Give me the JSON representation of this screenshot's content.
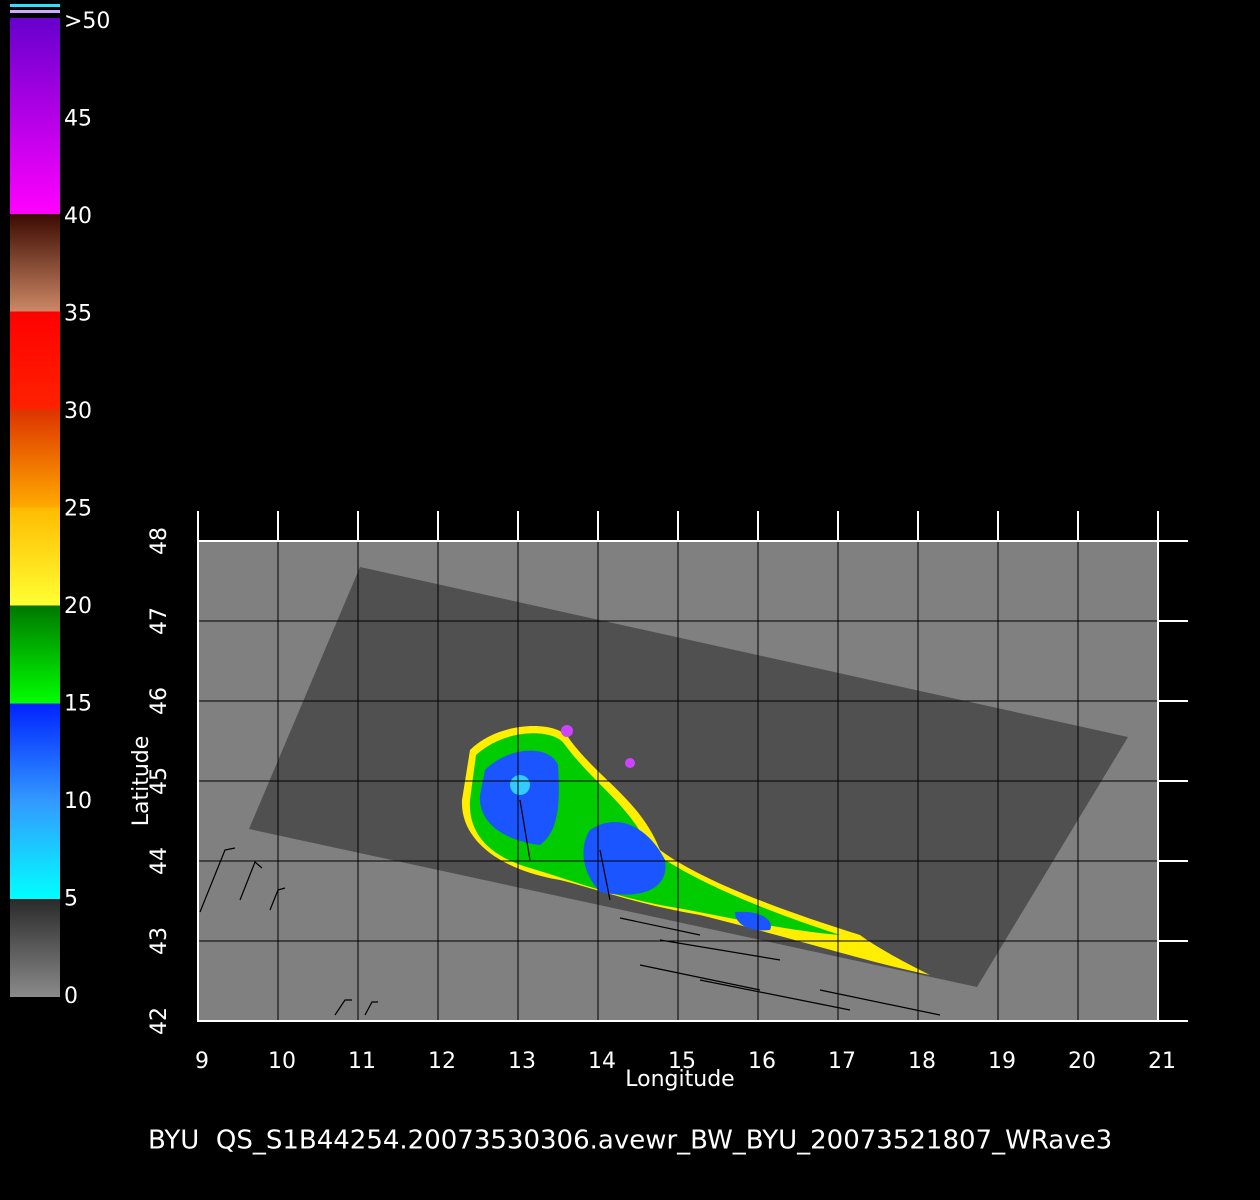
{
  "colorbar": {
    "ticks": [
      0,
      5,
      10,
      15,
      20,
      25,
      30,
      35,
      40,
      45,
      {
        "value": 50,
        "label": ">50"
      }
    ]
  },
  "map": {
    "xlabel": "Longitude",
    "ylabel": "Latitude",
    "xlim": [
      9,
      21
    ],
    "ylim": [
      42,
      48
    ],
    "xticks": [
      9,
      10,
      11,
      12,
      13,
      14,
      15,
      16,
      17,
      18,
      19,
      20,
      21
    ],
    "yticks": [
      42,
      43,
      44,
      45,
      46,
      47,
      48
    ]
  },
  "footer": "BYU  QS_S1B44254.20073530306.avewr_BW_BYU_20073521807_WRave3"
}
